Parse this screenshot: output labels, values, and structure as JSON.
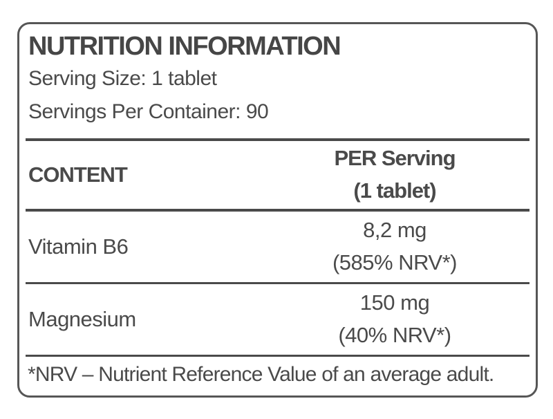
{
  "label": {
    "title": "NUTRITION INFORMATION",
    "serving_size": "Serving Size: 1 tablet",
    "servings_per_container": "Servings Per Container: 90",
    "table": {
      "content_header": "CONTENT",
      "per_serving_header_line1": "PER Serving",
      "per_serving_header_line2": "(1 tablet)",
      "rows": [
        {
          "name": "Vitamin B6",
          "amount": "8,2 mg",
          "nrv": "(585% NRV*)"
        },
        {
          "name": "Magnesium",
          "amount": "150 mg",
          "nrv": "(40% NRV*)"
        }
      ]
    },
    "footnote": "*NRV – Nutrient Reference Value of an average adult.",
    "colors": {
      "text": "#464646",
      "border": "#565656",
      "rule": "#4a4a4a",
      "background": "#ffffff"
    }
  }
}
